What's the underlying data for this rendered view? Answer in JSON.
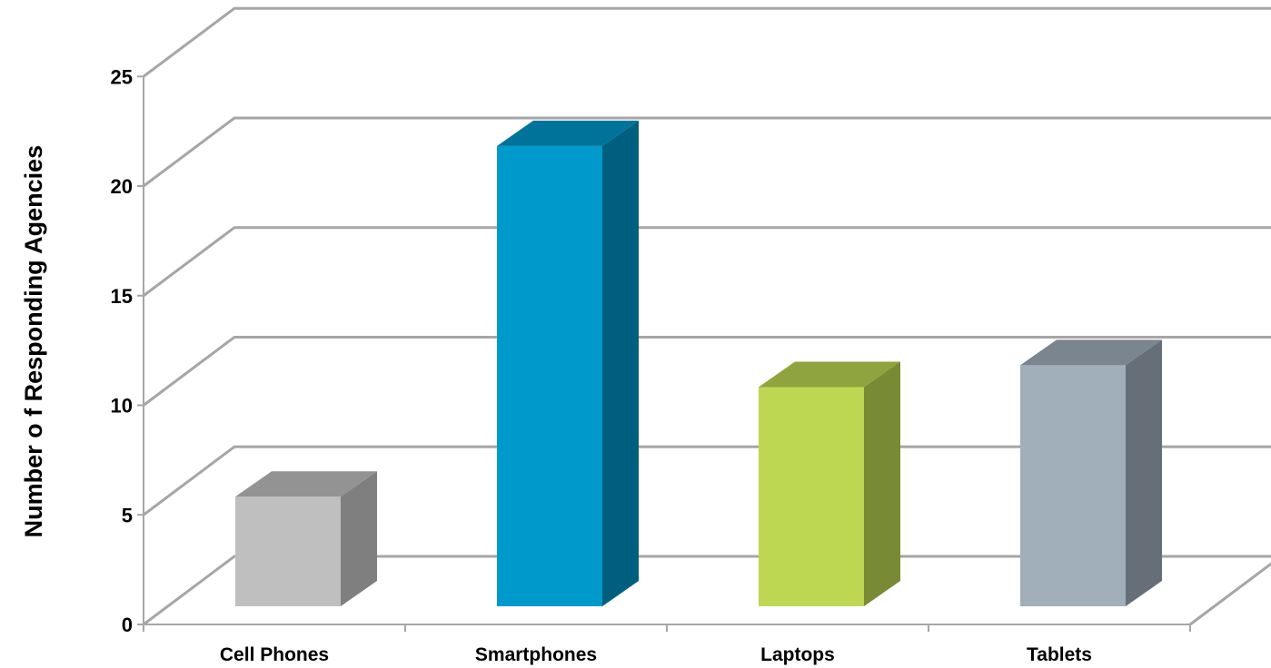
{
  "chart_data": {
    "type": "bar",
    "style": "3d-column",
    "title": "",
    "xlabel": "",
    "ylabel": "Number o f Responding Agencies",
    "categories": [
      "Cell Phones",
      "Smartphones",
      "Laptops",
      "Tablets"
    ],
    "values": [
      5,
      21,
      10,
      11
    ],
    "ylim": [
      0,
      25
    ],
    "yticks": [
      "0",
      "5",
      "10",
      "15",
      "20",
      "25"
    ],
    "grid": true,
    "legend": "none",
    "colors": [
      {
        "front": "#BFBFBF",
        "top": "#939393",
        "side": "#7F7F7F"
      },
      {
        "front": "#0099CC",
        "top": "#00739A",
        "side": "#005F7F"
      },
      {
        "front": "#BED752",
        "top": "#8FA43E",
        "side": "#788A33"
      },
      {
        "front": "#A1AFBB",
        "top": "#7A858F",
        "side": "#666E77"
      }
    ],
    "gridline_color": "#A6A6A6"
  }
}
